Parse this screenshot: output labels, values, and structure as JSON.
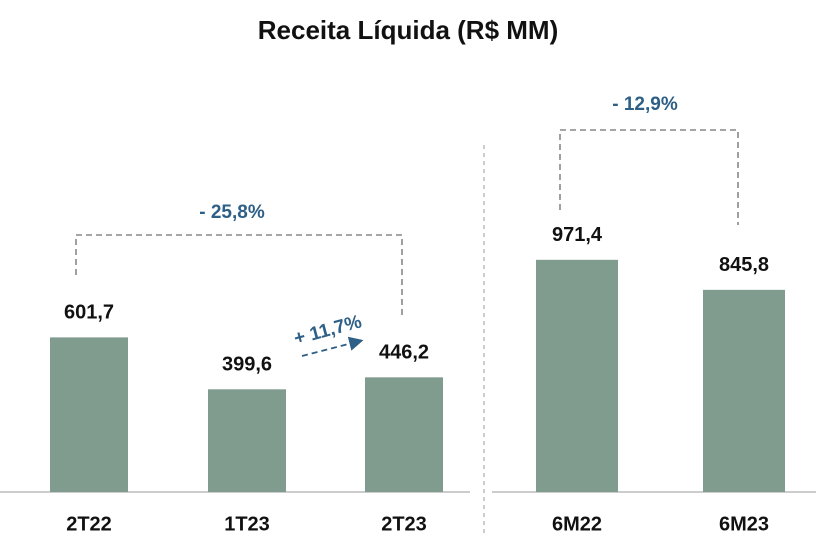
{
  "title": "Receita Líquida (R$ MM)",
  "chart_data": [
    {
      "type": "bar",
      "categories": [
        "2T22",
        "1T23",
        "2T23"
      ],
      "values": [
        601.7,
        399.6,
        446.2
      ],
      "value_labels": [
        "601,7",
        "399,6",
        "446,2"
      ],
      "color": "#7f9c8f",
      "annotations": [
        "- 25,8%",
        "+ 11,7%"
      ]
    },
    {
      "type": "bar",
      "categories": [
        "6M22",
        "6M23"
      ],
      "values": [
        971.4,
        845.8
      ],
      "value_labels": [
        "971,4",
        "845,8"
      ],
      "color": "#7f9c8f",
      "annotations": [
        "- 12,9%"
      ]
    }
  ]
}
